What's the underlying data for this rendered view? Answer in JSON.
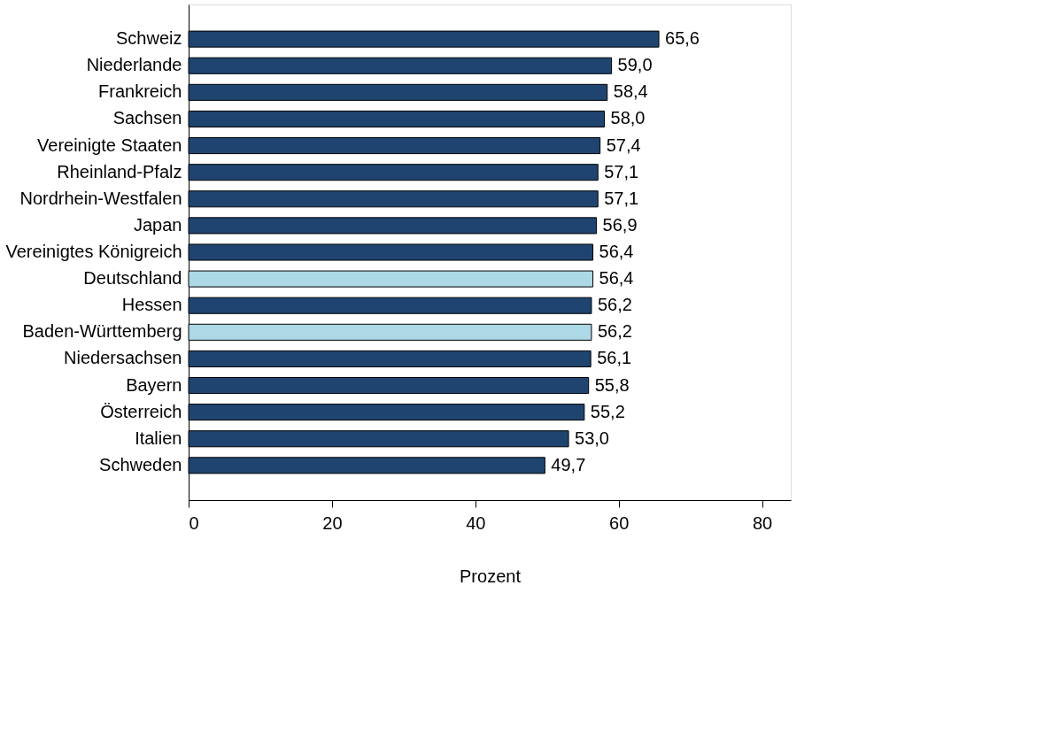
{
  "chart_data": {
    "type": "bar",
    "orientation": "horizontal",
    "xlabel": "Prozent",
    "categories": [
      "Schweiz",
      "Niederlande",
      "Frankreich",
      "Sachsen",
      "Vereinigte Staaten",
      "Rheinland-Pfalz",
      "Nordrhein-Westfalen",
      "Japan",
      "Vereinigtes Königreich",
      "Deutschland",
      "Hessen",
      "Baden-Württemberg",
      "Niedersachsen",
      "Bayern",
      "Österreich",
      "Italien",
      "Schweden"
    ],
    "values": [
      65.6,
      59.0,
      58.4,
      58.0,
      57.4,
      57.1,
      57.1,
      56.9,
      56.4,
      56.4,
      56.2,
      56.2,
      56.1,
      55.8,
      55.2,
      53.0,
      49.7
    ],
    "value_labels": [
      "65,6",
      "59,0",
      "58,4",
      "58,0",
      "57,4",
      "57,1",
      "57,1",
      "56,9",
      "56,4",
      "56,4",
      "56,2",
      "56,2",
      "56,1",
      "55,8",
      "55,2",
      "53,0",
      "49,7"
    ],
    "colors": [
      "#1f4470",
      "#1f4470",
      "#1f4470",
      "#1f4470",
      "#1f4470",
      "#1f4470",
      "#1f4470",
      "#1f4470",
      "#1f4470",
      "#add8e6",
      "#1f4470",
      "#add8e6",
      "#1f4470",
      "#1f4470",
      "#1f4470",
      "#1f4470",
      "#1f4470"
    ],
    "xlim": [
      0,
      84
    ],
    "xticks": [
      0,
      20,
      40,
      60,
      80
    ],
    "grid": false,
    "legend": false
  }
}
